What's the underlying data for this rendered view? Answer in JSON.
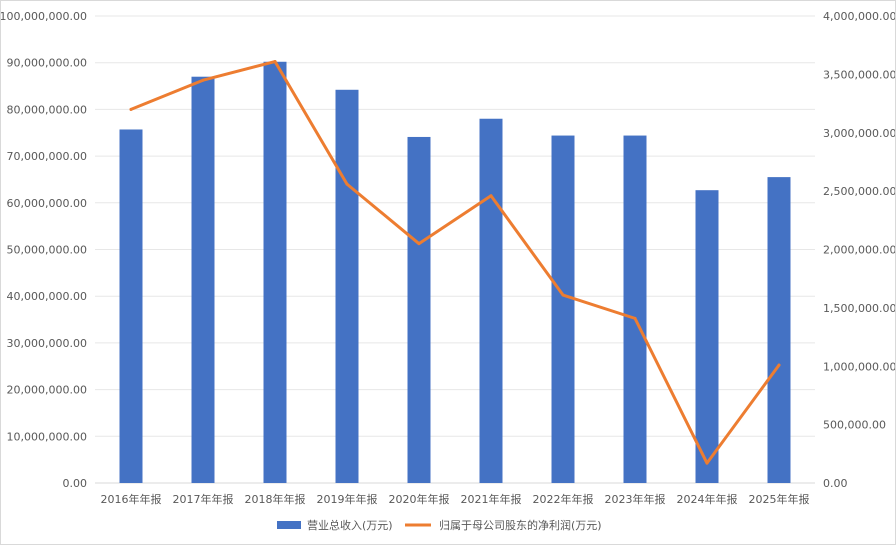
{
  "chart_data": {
    "type": "bar+line",
    "categories": [
      "2016年年报",
      "2017年年报",
      "2018年年报",
      "2019年年报",
      "2020年年报",
      "2021年年报",
      "2022年年报",
      "2023年年报",
      "2024年年报",
      "2025年年报"
    ],
    "series": [
      {
        "name": "营业总收入(万元)",
        "type": "bar",
        "axis": "left",
        "color": "#4472c4",
        "values": [
          75700000,
          87000000,
          90200000,
          84200000,
          74100000,
          78000000,
          74400000,
          74400000,
          62700000,
          65500000
        ]
      },
      {
        "name": "归属于母公司股东的净利润(万元)",
        "type": "line",
        "axis": "right",
        "color": "#ed7d31",
        "values": [
          3200000,
          3450000,
          3610000,
          2560000,
          2050000,
          2460000,
          1610000,
          1410000,
          170000,
          1010000
        ]
      }
    ],
    "y_left": {
      "min": 0,
      "max": 100000000,
      "step": 10000000,
      "tick_labels": [
        "0.00",
        "10,000,000.00",
        "20,000,000.00",
        "30,000,000.00",
        "40,000,000.00",
        "50,000,000.00",
        "60,000,000.00",
        "70,000,000.00",
        "80,000,000.00",
        "90,000,000.00",
        "100,000,000.00"
      ]
    },
    "y_right": {
      "min": 0,
      "max": 4000000,
      "step": 500000,
      "tick_labels": [
        "0.00",
        "500,000.00",
        "1,000,000.00",
        "1,500,000.00",
        "2,000,000.00",
        "2,500,000.00",
        "3,000,000.00",
        "3,500,000.00",
        "4,000,000.00"
      ]
    },
    "grid": true,
    "legend_position": "bottom",
    "title": "",
    "xlabel": "",
    "ylabel": ""
  }
}
